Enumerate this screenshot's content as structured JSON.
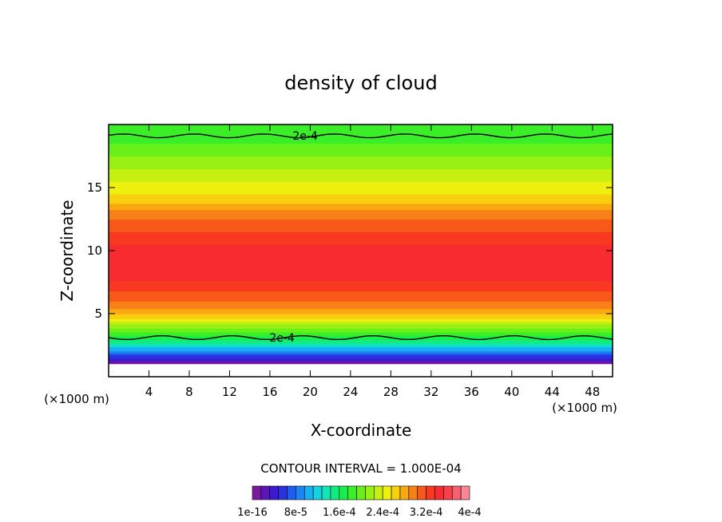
{
  "chart_data": {
    "type": "heatmap",
    "title": "density of cloud",
    "xlabel": "X-coordinate",
    "ylabel": "Z-coordinate",
    "x_unit_label": "(×1000 m)",
    "y_unit_label": "(×1000 m)",
    "xlim": [
      0,
      50
    ],
    "ylim": [
      0,
      20
    ],
    "x_ticks": [
      4,
      8,
      12,
      16,
      20,
      24,
      28,
      32,
      36,
      40,
      44,
      48
    ],
    "y_ticks": [
      5,
      10,
      15
    ],
    "contour_interval_text": "CONTOUR INTERVAL = 1.000E-04",
    "contour_labels": [
      {
        "text": "2e-4",
        "x": 19.5,
        "z": 19.1
      },
      {
        "text": "2e-4",
        "x": 17.2,
        "z": 3.1
      }
    ],
    "colorbar": {
      "colors": [
        "#7a1a9e",
        "#5a16b8",
        "#3c1ad0",
        "#2a32e0",
        "#1f5cf0",
        "#1a86f5",
        "#18b0f0",
        "#14d2e0",
        "#10e6b8",
        "#10ec80",
        "#18ee4c",
        "#3aee28",
        "#68f018",
        "#98f014",
        "#c6f010",
        "#eef010",
        "#f8d010",
        "#f8a810",
        "#f88018",
        "#f85818",
        "#f83820",
        "#f82c30",
        "#f8404c",
        "#f86070",
        "#f88898"
      ],
      "tick_labels": [
        "1e-16",
        "8e-5",
        "1.6e-4",
        "2.4e-4",
        "3.2e-4",
        "4e-4"
      ]
    },
    "field_profile": {
      "z": [
        1.0,
        1.6,
        2.2,
        2.8,
        3.4,
        4.0,
        4.8,
        5.6,
        6.4,
        7.2,
        8.0,
        9.0,
        10.0,
        11.0,
        12.0,
        13.0,
        14.0,
        15.0,
        16.0,
        17.0,
        18.0,
        19.0,
        20.0
      ],
      "level_index": [
        0,
        3,
        6,
        9,
        11,
        13,
        16,
        18,
        19,
        20,
        21,
        21,
        21,
        20,
        19,
        18,
        16,
        15,
        14,
        13,
        12,
        11,
        11
      ]
    }
  }
}
